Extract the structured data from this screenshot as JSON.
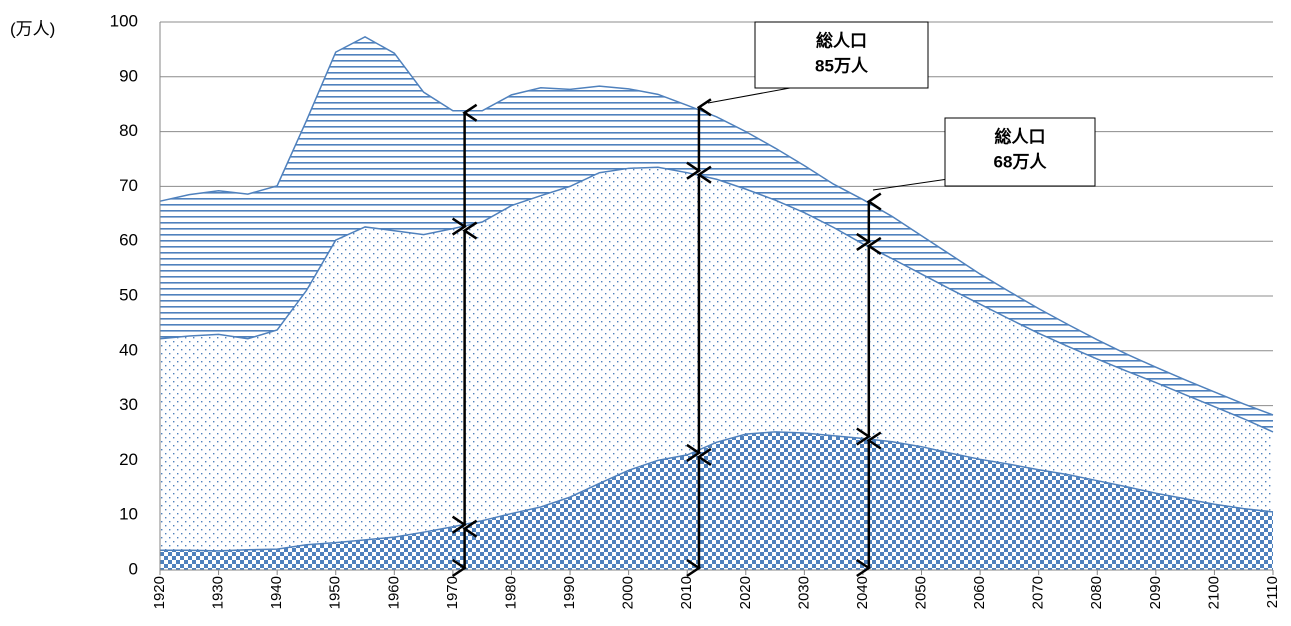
{
  "chart_data": {
    "type": "area",
    "y_label": "(万人)",
    "x": [
      1920,
      1925,
      1930,
      1935,
      1940,
      1945,
      1950,
      1955,
      1960,
      1965,
      1970,
      1975,
      1980,
      1985,
      1990,
      1995,
      2000,
      2005,
      2010,
      2015,
      2020,
      2025,
      2030,
      2035,
      2040,
      2045,
      2050,
      2055,
      2060,
      2065,
      2070,
      2075,
      2080,
      2085,
      2090,
      2095,
      2100,
      2105,
      2110
    ],
    "series": [
      {
        "color": "#4f81bd",
        "pattern": "checker",
        "values": [
          3.6,
          3.6,
          3.5,
          3.7,
          3.8,
          4.6,
          5.0,
          5.5,
          6.0,
          6.9,
          7.9,
          9.0,
          10.3,
          11.5,
          13.3,
          15.8,
          18.2,
          20.0,
          21.0,
          23.3,
          24.8,
          25.2,
          25.0,
          24.5,
          24.0,
          23.4,
          22.5,
          21.3,
          20.2,
          19.3,
          18.3,
          17.4,
          16.3,
          15.2,
          14.0,
          13.0,
          12.0,
          11.2,
          10.6
        ]
      },
      {
        "color": "#4f81bd",
        "pattern": "dots",
        "values": [
          38.6,
          39.1,
          39.5,
          38.5,
          40.0,
          46.4,
          55.2,
          57.1,
          55.9,
          54.3,
          54.4,
          54.5,
          56.2,
          56.8,
          56.7,
          56.7,
          55.1,
          53.5,
          51.5,
          48.0,
          44.7,
          42.3,
          40.2,
          38.0,
          35.5,
          33.4,
          31.5,
          29.9,
          28.3,
          26.5,
          24.9,
          23.4,
          22.2,
          21.1,
          20.2,
          19.0,
          17.8,
          16.4,
          14.6
        ]
      },
      {
        "color": "#4f81bd",
        "pattern": "hlines",
        "values": [
          25.1,
          25.8,
          26.2,
          26.4,
          26.3,
          31.0,
          34.3,
          34.7,
          32.4,
          26.0,
          21.5,
          20.3,
          20.2,
          19.7,
          17.7,
          15.8,
          14.5,
          13.3,
          12.3,
          11.4,
          10.5,
          9.5,
          8.6,
          7.9,
          8.1,
          7.7,
          7.0,
          6.3,
          5.5,
          5.0,
          4.5,
          4.0,
          3.5,
          3.1,
          2.8,
          2.7,
          2.7,
          2.7,
          3.1
        ]
      }
    ],
    "xlim": [
      1920,
      2110
    ],
    "xticks": [
      1920,
      1930,
      1940,
      1950,
      1960,
      1970,
      1980,
      1990,
      2000,
      2010,
      2020,
      2030,
      2040,
      2050,
      2060,
      2070,
      2080,
      2090,
      2100,
      2110
    ],
    "ylim": [
      0,
      100
    ],
    "yticks": [
      0,
      10,
      20,
      30,
      40,
      50,
      60,
      70,
      80,
      90,
      100
    ],
    "grid": true,
    "annotations": [
      {
        "lines": [
          "総人口",
          "85万人"
        ]
      },
      {
        "lines": [
          "総人口",
          "68万人"
        ]
      }
    ]
  }
}
